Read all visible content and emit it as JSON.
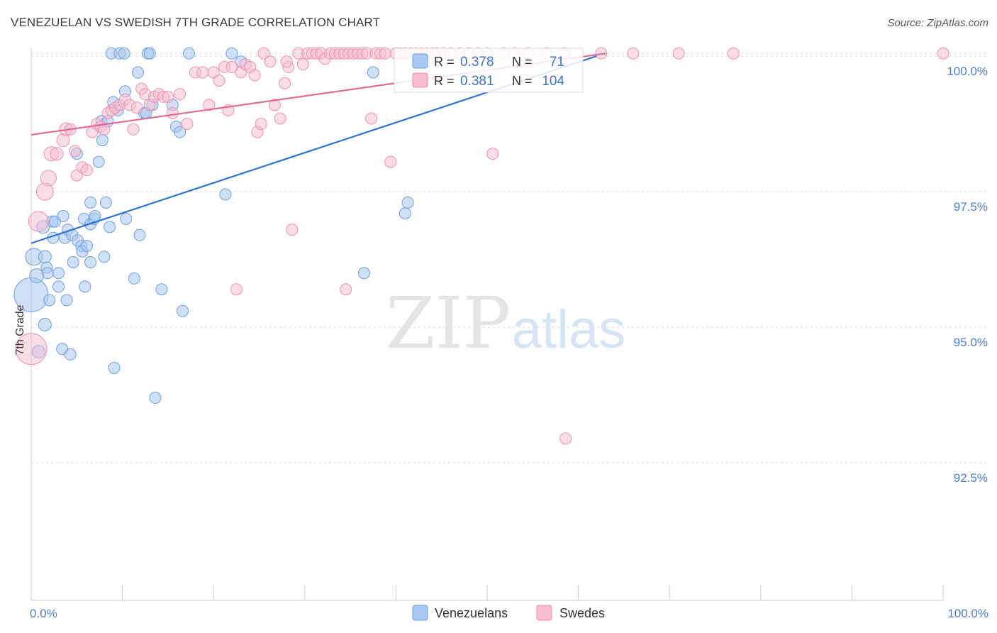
{
  "title": "VENEZUELAN VS SWEDISH 7TH GRADE CORRELATION CHART",
  "source": "Source: ZipAtlas.com",
  "watermark": {
    "zip": "ZIP",
    "atlas": "atlas"
  },
  "colors": {
    "venezuelans_fill": "#a9c8f0",
    "venezuelans_stroke": "#6f9fe0",
    "venezuelans_line": "#2f72d0",
    "swedes_fill": "#f6bcd0",
    "swedes_stroke": "#ee90b0",
    "swedes_line": "#e06a98",
    "tick_text": "#4a7fd0"
  },
  "stats_legend": {
    "r_label": "R =",
    "n_label": "N =",
    "rows": [
      {
        "series": "Venezuelans",
        "r": "0.378",
        "n": "71"
      },
      {
        "series": "Swedes",
        "r": "0.381",
        "n": "104"
      }
    ]
  },
  "chart_data": {
    "type": "scatter",
    "title": "VENEZUELAN VS SWEDISH 7TH GRADE CORRELATION CHART",
    "xlabel": "",
    "ylabel": "7th Grade",
    "xlim": [
      0,
      100
    ],
    "ylim": [
      90.2,
      100.25
    ],
    "x_tick_labels": [
      {
        "value": 0,
        "label": "0.0%"
      },
      {
        "value": 100,
        "label": "100.0%"
      }
    ],
    "x_minor_ticks": [
      0,
      10,
      20,
      30,
      40,
      50,
      60,
      70,
      80,
      90,
      100
    ],
    "y_ticks": [
      {
        "value": 100.0,
        "label": "100.0%"
      },
      {
        "value": 97.5,
        "label": "97.5%"
      },
      {
        "value": 95.0,
        "label": "95.0%"
      },
      {
        "value": 92.5,
        "label": "92.5%"
      }
    ],
    "grid": true,
    "legend_position": "bottom-center",
    "series": [
      {
        "name": "Venezuelans",
        "r": 0.378,
        "n": 71,
        "trend": [
          {
            "x": 0,
            "y": 96.55
          },
          {
            "x": 62,
            "y": 100.0
          }
        ],
        "points": [
          {
            "x": 0,
            "y": 95.6,
            "s": 24
          },
          {
            "x": 0.3,
            "y": 96.3,
            "s": 12
          },
          {
            "x": 0.6,
            "y": 95.95,
            "s": 10
          },
          {
            "x": 0.8,
            "y": 94.55,
            "s": 9
          },
          {
            "x": 1.3,
            "y": 96.85,
            "s": 9
          },
          {
            "x": 1.5,
            "y": 96.3,
            "s": 9
          },
          {
            "x": 1.5,
            "y": 95.05,
            "s": 9
          },
          {
            "x": 1.7,
            "y": 96.1,
            "s": 8
          },
          {
            "x": 1.8,
            "y": 96.0,
            "s": 8
          },
          {
            "x": 2.0,
            "y": 95.5,
            "s": 8
          },
          {
            "x": 2.3,
            "y": 96.95,
            "s": 8
          },
          {
            "x": 2.4,
            "y": 96.65,
            "s": 8
          },
          {
            "x": 2.6,
            "y": 96.95,
            "s": 8
          },
          {
            "x": 3.0,
            "y": 96.0,
            "s": 8
          },
          {
            "x": 3.0,
            "y": 95.75,
            "s": 8
          },
          {
            "x": 3.4,
            "y": 94.6,
            "s": 8
          },
          {
            "x": 3.5,
            "y": 97.05,
            "s": 8
          },
          {
            "x": 3.7,
            "y": 96.65,
            "s": 8
          },
          {
            "x": 3.9,
            "y": 95.5,
            "s": 8
          },
          {
            "x": 4.0,
            "y": 96.8,
            "s": 8
          },
          {
            "x": 4.3,
            "y": 94.5,
            "s": 8
          },
          {
            "x": 4.5,
            "y": 96.7,
            "s": 8
          },
          {
            "x": 4.6,
            "y": 96.2,
            "s": 8
          },
          {
            "x": 5.0,
            "y": 98.2,
            "s": 8
          },
          {
            "x": 5.1,
            "y": 96.6,
            "s": 8
          },
          {
            "x": 5.5,
            "y": 96.5,
            "s": 8
          },
          {
            "x": 5.6,
            "y": 96.4,
            "s": 8
          },
          {
            "x": 5.8,
            "y": 97.0,
            "s": 8
          },
          {
            "x": 5.9,
            "y": 95.75,
            "s": 8
          },
          {
            "x": 6.1,
            "y": 96.5,
            "s": 8
          },
          {
            "x": 6.5,
            "y": 97.3,
            "s": 8
          },
          {
            "x": 6.5,
            "y": 96.9,
            "s": 8
          },
          {
            "x": 6.5,
            "y": 96.2,
            "s": 8
          },
          {
            "x": 6.9,
            "y": 97.0,
            "s": 8
          },
          {
            "x": 7.0,
            "y": 97.05,
            "s": 8
          },
          {
            "x": 7.4,
            "y": 98.05,
            "s": 8
          },
          {
            "x": 7.7,
            "y": 98.8,
            "s": 8
          },
          {
            "x": 7.8,
            "y": 98.45,
            "s": 8
          },
          {
            "x": 8.0,
            "y": 96.3,
            "s": 8
          },
          {
            "x": 8.2,
            "y": 97.3,
            "s": 8
          },
          {
            "x": 8.4,
            "y": 98.8,
            "s": 8
          },
          {
            "x": 8.6,
            "y": 96.85,
            "s": 8
          },
          {
            "x": 8.8,
            "y": 100.05,
            "s": 8
          },
          {
            "x": 9.0,
            "y": 99.15,
            "s": 8
          },
          {
            "x": 9.1,
            "y": 94.25,
            "s": 8
          },
          {
            "x": 9.5,
            "y": 99.0,
            "s": 8
          },
          {
            "x": 9.7,
            "y": 100.05,
            "s": 8
          },
          {
            "x": 10.2,
            "y": 100.05,
            "s": 8
          },
          {
            "x": 10.3,
            "y": 99.35,
            "s": 8
          },
          {
            "x": 10.4,
            "y": 97.0,
            "s": 8
          },
          {
            "x": 11.3,
            "y": 95.9,
            "s": 8
          },
          {
            "x": 11.7,
            "y": 99.7,
            "s": 8
          },
          {
            "x": 11.9,
            "y": 96.7,
            "s": 8
          },
          {
            "x": 12.4,
            "y": 98.95,
            "s": 8
          },
          {
            "x": 12.6,
            "y": 98.95,
            "s": 8
          },
          {
            "x": 12.8,
            "y": 100.05,
            "s": 8
          },
          {
            "x": 13.0,
            "y": 100.05,
            "s": 8
          },
          {
            "x": 13.3,
            "y": 99.1,
            "s": 8
          },
          {
            "x": 13.6,
            "y": 93.7,
            "s": 8
          },
          {
            "x": 14.3,
            "y": 95.7,
            "s": 8
          },
          {
            "x": 15.5,
            "y": 99.1,
            "s": 8
          },
          {
            "x": 15.9,
            "y": 98.7,
            "s": 8
          },
          {
            "x": 16.3,
            "y": 98.6,
            "s": 8
          },
          {
            "x": 16.6,
            "y": 95.3,
            "s": 8
          },
          {
            "x": 17.3,
            "y": 100.05,
            "s": 8
          },
          {
            "x": 21.3,
            "y": 97.45,
            "s": 8
          },
          {
            "x": 22.0,
            "y": 100.05,
            "s": 8
          },
          {
            "x": 23.0,
            "y": 99.9,
            "s": 8
          },
          {
            "x": 36.5,
            "y": 96.0,
            "s": 8
          },
          {
            "x": 37.5,
            "y": 99.7,
            "s": 8
          },
          {
            "x": 41.0,
            "y": 97.1,
            "s": 8
          },
          {
            "x": 41.3,
            "y": 97.3,
            "s": 8
          },
          {
            "x": 44.5,
            "y": 100.05,
            "s": 8
          }
        ]
      },
      {
        "name": "Swedes",
        "r": 0.381,
        "n": 104,
        "trend": [
          {
            "x": 0,
            "y": 98.55
          },
          {
            "x": 63,
            "y": 100.05
          }
        ],
        "points": [
          {
            "x": 0,
            "y": 94.6,
            "s": 22
          },
          {
            "x": 0.8,
            "y": 96.95,
            "s": 14
          },
          {
            "x": 1.5,
            "y": 97.5,
            "s": 12
          },
          {
            "x": 1.9,
            "y": 97.75,
            "s": 11
          },
          {
            "x": 2.2,
            "y": 98.2,
            "s": 10
          },
          {
            "x": 2.8,
            "y": 98.2,
            "s": 9
          },
          {
            "x": 3.5,
            "y": 98.45,
            "s": 9
          },
          {
            "x": 3.8,
            "y": 98.65,
            "s": 9
          },
          {
            "x": 4.3,
            "y": 98.65,
            "s": 8
          },
          {
            "x": 4.8,
            "y": 98.25,
            "s": 8
          },
          {
            "x": 5.0,
            "y": 97.8,
            "s": 8
          },
          {
            "x": 5.6,
            "y": 97.95,
            "s": 8
          },
          {
            "x": 6.1,
            "y": 97.9,
            "s": 8
          },
          {
            "x": 6.7,
            "y": 98.6,
            "s": 8
          },
          {
            "x": 7.2,
            "y": 98.75,
            "s": 8
          },
          {
            "x": 7.6,
            "y": 98.7,
            "s": 8
          },
          {
            "x": 8.0,
            "y": 98.65,
            "s": 8
          },
          {
            "x": 8.4,
            "y": 98.95,
            "s": 8
          },
          {
            "x": 8.8,
            "y": 99.0,
            "s": 8
          },
          {
            "x": 9.2,
            "y": 99.05,
            "s": 8
          },
          {
            "x": 9.7,
            "y": 99.1,
            "s": 8
          },
          {
            "x": 10.3,
            "y": 99.2,
            "s": 8
          },
          {
            "x": 10.8,
            "y": 99.1,
            "s": 8
          },
          {
            "x": 11.2,
            "y": 98.65,
            "s": 8
          },
          {
            "x": 11.6,
            "y": 99.05,
            "s": 8
          },
          {
            "x": 12.1,
            "y": 99.4,
            "s": 8
          },
          {
            "x": 12.5,
            "y": 99.3,
            "s": 8
          },
          {
            "x": 13.0,
            "y": 99.1,
            "s": 8
          },
          {
            "x": 13.5,
            "y": 99.25,
            "s": 8
          },
          {
            "x": 14.0,
            "y": 99.3,
            "s": 8
          },
          {
            "x": 14.5,
            "y": 99.25,
            "s": 8
          },
          {
            "x": 15.0,
            "y": 99.25,
            "s": 8
          },
          {
            "x": 15.5,
            "y": 98.95,
            "s": 8
          },
          {
            "x": 16.3,
            "y": 99.3,
            "s": 8
          },
          {
            "x": 17.1,
            "y": 98.75,
            "s": 8
          },
          {
            "x": 18.0,
            "y": 99.7,
            "s": 8
          },
          {
            "x": 18.8,
            "y": 99.7,
            "s": 8
          },
          {
            "x": 19.5,
            "y": 99.1,
            "s": 8
          },
          {
            "x": 20.0,
            "y": 99.7,
            "s": 8
          },
          {
            "x": 20.6,
            "y": 99.55,
            "s": 8
          },
          {
            "x": 21.2,
            "y": 99.8,
            "s": 8
          },
          {
            "x": 21.6,
            "y": 99.0,
            "s": 8
          },
          {
            "x": 22.0,
            "y": 99.8,
            "s": 8
          },
          {
            "x": 22.5,
            "y": 95.7,
            "s": 8
          },
          {
            "x": 23.0,
            "y": 99.7,
            "s": 8
          },
          {
            "x": 23.5,
            "y": 99.85,
            "s": 8
          },
          {
            "x": 24.0,
            "y": 99.8,
            "s": 8
          },
          {
            "x": 24.5,
            "y": 99.65,
            "s": 8
          },
          {
            "x": 24.8,
            "y": 98.6,
            "s": 8
          },
          {
            "x": 25.2,
            "y": 98.75,
            "s": 8
          },
          {
            "x": 25.5,
            "y": 100.05,
            "s": 8
          },
          {
            "x": 26.2,
            "y": 99.9,
            "s": 8
          },
          {
            "x": 26.7,
            "y": 99.1,
            "s": 8
          },
          {
            "x": 27.3,
            "y": 98.85,
            "s": 8
          },
          {
            "x": 27.8,
            "y": 99.5,
            "s": 8
          },
          {
            "x": 28.2,
            "y": 99.8,
            "s": 8
          },
          {
            "x": 28.6,
            "y": 96.8,
            "s": 8
          },
          {
            "x": 29.3,
            "y": 100.05,
            "s": 8
          },
          {
            "x": 29.8,
            "y": 99.85,
            "s": 8
          },
          {
            "x": 30.3,
            "y": 100.05,
            "s": 8
          },
          {
            "x": 30.8,
            "y": 100.05,
            "s": 8
          },
          {
            "x": 31.3,
            "y": 100.05,
            "s": 8
          },
          {
            "x": 31.8,
            "y": 100.05,
            "s": 8
          },
          {
            "x": 32.2,
            "y": 99.95,
            "s": 8
          },
          {
            "x": 32.8,
            "y": 100.05,
            "s": 8
          },
          {
            "x": 33.3,
            "y": 100.05,
            "s": 8
          },
          {
            "x": 33.8,
            "y": 100.05,
            "s": 8
          },
          {
            "x": 34.3,
            "y": 100.05,
            "s": 8
          },
          {
            "x": 34.8,
            "y": 100.05,
            "s": 8
          },
          {
            "x": 35.3,
            "y": 100.05,
            "s": 8
          },
          {
            "x": 35.8,
            "y": 100.05,
            "s": 8
          },
          {
            "x": 36.3,
            "y": 100.05,
            "s": 8
          },
          {
            "x": 36.8,
            "y": 100.05,
            "s": 8
          },
          {
            "x": 37.3,
            "y": 98.85,
            "s": 8
          },
          {
            "x": 37.8,
            "y": 100.05,
            "s": 8
          },
          {
            "x": 38.3,
            "y": 100.05,
            "s": 8
          },
          {
            "x": 38.8,
            "y": 100.05,
            "s": 8
          },
          {
            "x": 39.4,
            "y": 98.05,
            "s": 8
          },
          {
            "x": 40.0,
            "y": 100.05,
            "s": 8
          },
          {
            "x": 40.5,
            "y": 100.05,
            "s": 8
          },
          {
            "x": 41.0,
            "y": 100.05,
            "s": 8
          },
          {
            "x": 41.6,
            "y": 100.05,
            "s": 8
          },
          {
            "x": 42.2,
            "y": 100.05,
            "s": 8
          },
          {
            "x": 42.8,
            "y": 100.05,
            "s": 8
          },
          {
            "x": 43.4,
            "y": 100.05,
            "s": 8
          },
          {
            "x": 44.0,
            "y": 100.05,
            "s": 8
          },
          {
            "x": 44.5,
            "y": 100.05,
            "s": 8
          },
          {
            "x": 45.2,
            "y": 100.05,
            "s": 8
          },
          {
            "x": 46.0,
            "y": 100.05,
            "s": 8
          },
          {
            "x": 47.0,
            "y": 100.05,
            "s": 8
          },
          {
            "x": 48.0,
            "y": 100.05,
            "s": 8
          },
          {
            "x": 49.0,
            "y": 100.05,
            "s": 8
          },
          {
            "x": 50.0,
            "y": 100.05,
            "s": 8
          },
          {
            "x": 50.6,
            "y": 98.2,
            "s": 8
          },
          {
            "x": 51.8,
            "y": 100.05,
            "s": 8
          },
          {
            "x": 53.0,
            "y": 100.05,
            "s": 8
          },
          {
            "x": 54.5,
            "y": 100.05,
            "s": 8
          },
          {
            "x": 56.5,
            "y": 100.05,
            "s": 8
          },
          {
            "x": 58.5,
            "y": 100.05,
            "s": 8
          },
          {
            "x": 58.6,
            "y": 92.95,
            "s": 8
          },
          {
            "x": 62.5,
            "y": 100.05,
            "s": 8
          },
          {
            "x": 66.0,
            "y": 100.05,
            "s": 8
          },
          {
            "x": 71.0,
            "y": 100.05,
            "s": 8
          },
          {
            "x": 77.0,
            "y": 100.05,
            "s": 8
          },
          {
            "x": 100.0,
            "y": 100.05,
            "s": 8
          },
          {
            "x": 34.5,
            "y": 95.7,
            "s": 8
          },
          {
            "x": 28.0,
            "y": 99.9,
            "s": 8
          }
        ]
      }
    ]
  }
}
